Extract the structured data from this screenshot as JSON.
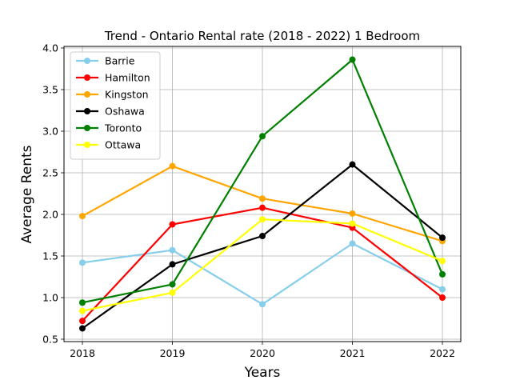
{
  "chart_data": {
    "type": "line",
    "title": "Trend - Ontario Rental rate (2018 - 2022) 1 Bedroom",
    "xlabel": "Years",
    "ylabel": "Average Rents",
    "x": [
      "2018",
      "2019",
      "2020",
      "2021",
      "2022"
    ],
    "ylim": [
      0.5,
      4.0
    ],
    "yticks": [
      "0.5",
      "1.0",
      "1.5",
      "2.0",
      "2.5",
      "3.0",
      "3.5",
      "4.0"
    ],
    "grid": true,
    "legend_position": "top-left",
    "series": [
      {
        "name": "Barrie",
        "color": "#87ceeb",
        "values": [
          1.42,
          1.57,
          0.92,
          1.65,
          1.1
        ]
      },
      {
        "name": "Hamilton",
        "color": "#ff0000",
        "values": [
          0.72,
          1.88,
          2.08,
          1.84,
          1.0
        ]
      },
      {
        "name": "Kingston",
        "color": "#ffa500",
        "values": [
          1.98,
          2.58,
          2.19,
          2.01,
          1.68
        ]
      },
      {
        "name": "Oshawa",
        "color": "#000000",
        "values": [
          0.63,
          1.4,
          1.74,
          2.6,
          1.72
        ]
      },
      {
        "name": "Toronto",
        "color": "#008000",
        "values": [
          0.94,
          1.16,
          2.94,
          3.86,
          1.28
        ]
      },
      {
        "name": "Ottawa",
        "color": "#ffff00",
        "values": [
          0.84,
          1.06,
          1.94,
          1.89,
          1.44
        ]
      }
    ]
  }
}
